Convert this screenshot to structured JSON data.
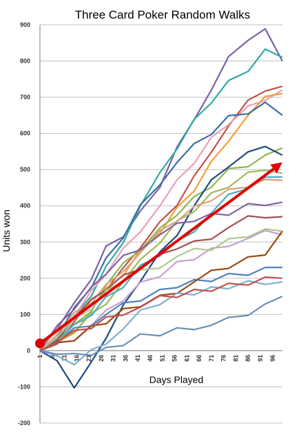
{
  "chart_data": {
    "type": "line",
    "title": "Three Card Poker Random Walks",
    "xlabel": "Days Played",
    "ylabel": "Units won",
    "xlim": [
      1,
      100
    ],
    "ylim": [
      -200,
      900
    ],
    "yticks": [
      900,
      800,
      700,
      600,
      500,
      400,
      300,
      200,
      100,
      0,
      -100,
      -200
    ],
    "xticks": [
      1,
      6,
      11,
      16,
      21,
      26,
      31,
      36,
      41,
      46,
      51,
      56,
      61,
      66,
      71,
      76,
      81,
      86,
      91,
      96
    ],
    "grid": "horizontal",
    "legend": "none",
    "series": [
      {
        "color": "#7b5ea7",
        "x": [
          1,
          8,
          15,
          22,
          28,
          35,
          42,
          50,
          57,
          64,
          71,
          78,
          86,
          93,
          100
        ],
        "y": [
          10,
          60,
          120,
          200,
          280,
          320,
          380,
          460,
          560,
          650,
          720,
          800,
          860,
          880,
          800
        ]
      },
      {
        "color": "#2eaaa3",
        "x": [
          1,
          8,
          15,
          22,
          28,
          35,
          42,
          50,
          57,
          64,
          71,
          78,
          86,
          93,
          100
        ],
        "y": [
          0,
          40,
          90,
          160,
          230,
          310,
          400,
          480,
          560,
          630,
          690,
          740,
          780,
          830,
          810
        ]
      },
      {
        "color": "#c0504d",
        "x": [
          1,
          8,
          15,
          22,
          28,
          35,
          42,
          50,
          57,
          64,
          71,
          78,
          86,
          93,
          100
        ],
        "y": [
          0,
          30,
          80,
          130,
          170,
          220,
          290,
          350,
          410,
          480,
          560,
          620,
          680,
          720,
          730
        ]
      },
      {
        "color": "#e8a0b0",
        "x": [
          1,
          8,
          15,
          22,
          28,
          35,
          42,
          50,
          57,
          64,
          71,
          78,
          86,
          93,
          100
        ],
        "y": [
          0,
          50,
          100,
          160,
          220,
          280,
          340,
          400,
          460,
          520,
          580,
          630,
          670,
          700,
          720
        ]
      },
      {
        "color": "#f0a030",
        "x": [
          1,
          8,
          15,
          22,
          28,
          35,
          42,
          50,
          57,
          64,
          71,
          78,
          86,
          93,
          100
        ],
        "y": [
          0,
          20,
          60,
          110,
          160,
          210,
          270,
          330,
          390,
          450,
          520,
          590,
          650,
          690,
          710
        ]
      },
      {
        "color": "#3a6ea5",
        "x": [
          1,
          8,
          15,
          22,
          28,
          35,
          42,
          50,
          57,
          64,
          71,
          78,
          86,
          93,
          100
        ],
        "y": [
          0,
          40,
          110,
          180,
          250,
          320,
          400,
          470,
          520,
          560,
          600,
          640,
          660,
          680,
          650
        ]
      },
      {
        "color": "#8cb850",
        "x": [
          1,
          8,
          15,
          22,
          28,
          35,
          42,
          50,
          57,
          64,
          71,
          78,
          86,
          93,
          100
        ],
        "y": [
          0,
          30,
          70,
          120,
          180,
          230,
          280,
          330,
          380,
          420,
          460,
          500,
          520,
          540,
          560
        ]
      },
      {
        "color": "#1f497d",
        "x": [
          1,
          8,
          15,
          22,
          28,
          35,
          42,
          50,
          57,
          64,
          71,
          78,
          86,
          93,
          100
        ],
        "y": [
          0,
          -40,
          -100,
          -40,
          40,
          120,
          200,
          270,
          330,
          400,
          460,
          510,
          540,
          570,
          540
        ]
      },
      {
        "color": "#9bbb59",
        "x": [
          1,
          8,
          15,
          22,
          28,
          35,
          42,
          50,
          57,
          64,
          71,
          78,
          86,
          93,
          100
        ],
        "y": [
          0,
          20,
          60,
          100,
          140,
          190,
          240,
          300,
          350,
          390,
          430,
          460,
          490,
          510,
          490
        ]
      },
      {
        "color": "#4bacc6",
        "x": [
          1,
          8,
          15,
          22,
          28,
          35,
          42,
          50,
          57,
          64,
          71,
          78,
          86,
          93,
          100
        ],
        "y": [
          0,
          30,
          60,
          100,
          140,
          180,
          230,
          270,
          300,
          340,
          380,
          420,
          450,
          470,
          480
        ]
      },
      {
        "color": "#d9a07a",
        "x": [
          1,
          8,
          15,
          22,
          28,
          35,
          42,
          50,
          57,
          64,
          71,
          78,
          86,
          93,
          100
        ],
        "y": [
          0,
          50,
          100,
          140,
          180,
          230,
          270,
          320,
          360,
          390,
          420,
          440,
          460,
          470,
          470
        ]
      },
      {
        "color": "#a05050",
        "x": [
          1,
          8,
          15,
          22,
          28,
          35,
          42,
          50,
          57,
          64,
          71,
          78,
          86,
          93,
          100
        ],
        "y": [
          0,
          40,
          90,
          130,
          170,
          200,
          230,
          260,
          290,
          300,
          320,
          340,
          360,
          370,
          370
        ]
      },
      {
        "color": "#8064a2",
        "x": [
          1,
          8,
          15,
          22,
          28,
          35,
          42,
          50,
          57,
          64,
          71,
          78,
          86,
          93,
          100
        ],
        "y": [
          0,
          60,
          120,
          170,
          220,
          260,
          290,
          320,
          340,
          360,
          370,
          380,
          400,
          410,
          410
        ]
      },
      {
        "color": "#c4a0d0",
        "x": [
          1,
          8,
          15,
          22,
          28,
          35,
          42,
          50,
          57,
          64,
          71,
          78,
          86,
          93,
          100
        ],
        "y": [
          0,
          20,
          40,
          70,
          100,
          140,
          180,
          210,
          240,
          260,
          280,
          300,
          310,
          320,
          320
        ]
      },
      {
        "color": "#b0c890",
        "x": [
          1,
          8,
          15,
          22,
          28,
          35,
          42,
          50,
          57,
          64,
          71,
          78,
          86,
          93,
          100
        ],
        "y": [
          0,
          40,
          80,
          120,
          160,
          200,
          220,
          240,
          260,
          270,
          280,
          300,
          320,
          330,
          330
        ]
      },
      {
        "color": "#4f81bd",
        "x": [
          1,
          8,
          15,
          22,
          28,
          35,
          42,
          50,
          57,
          64,
          71,
          78,
          86,
          93,
          100
        ],
        "y": [
          0,
          30,
          60,
          80,
          100,
          120,
          140,
          160,
          180,
          190,
          200,
          210,
          220,
          230,
          230
        ]
      },
      {
        "color": "#9e480e",
        "x": [
          1,
          8,
          15,
          22,
          28,
          35,
          42,
          50,
          57,
          64,
          71,
          78,
          86,
          93,
          100
        ],
        "y": [
          0,
          10,
          30,
          60,
          80,
          110,
          130,
          150,
          170,
          190,
          210,
          230,
          250,
          270,
          330
        ]
      },
      {
        "color": "#7fb0d0",
        "x": [
          1,
          8,
          15,
          22,
          28,
          35,
          42,
          50,
          57,
          64,
          71,
          78,
          86,
          93,
          100
        ],
        "y": [
          0,
          -20,
          -30,
          0,
          30,
          60,
          100,
          130,
          150,
          160,
          170,
          180,
          190,
          195,
          190
        ]
      },
      {
        "color": "#6a8fb5",
        "x": [
          1,
          8,
          15,
          22,
          28,
          35,
          42,
          50,
          57,
          64,
          71,
          78,
          86,
          93,
          100
        ],
        "y": [
          0,
          -10,
          -20,
          -10,
          0,
          20,
          40,
          50,
          60,
          70,
          70,
          80,
          100,
          120,
          150
        ]
      },
      {
        "color": "#c0504d",
        "x": [
          1,
          8,
          15,
          22,
          28,
          35,
          42,
          50,
          57,
          64,
          71,
          78,
          86,
          93,
          100
        ],
        "y": [
          0,
          30,
          50,
          70,
          90,
          110,
          120,
          140,
          150,
          160,
          170,
          180,
          190,
          200,
          200
        ]
      }
    ],
    "trend_arrow": {
      "color": "#e00000",
      "start": {
        "x": 1,
        "y": 20
      },
      "end": {
        "x": 100,
        "y": 520
      }
    }
  }
}
